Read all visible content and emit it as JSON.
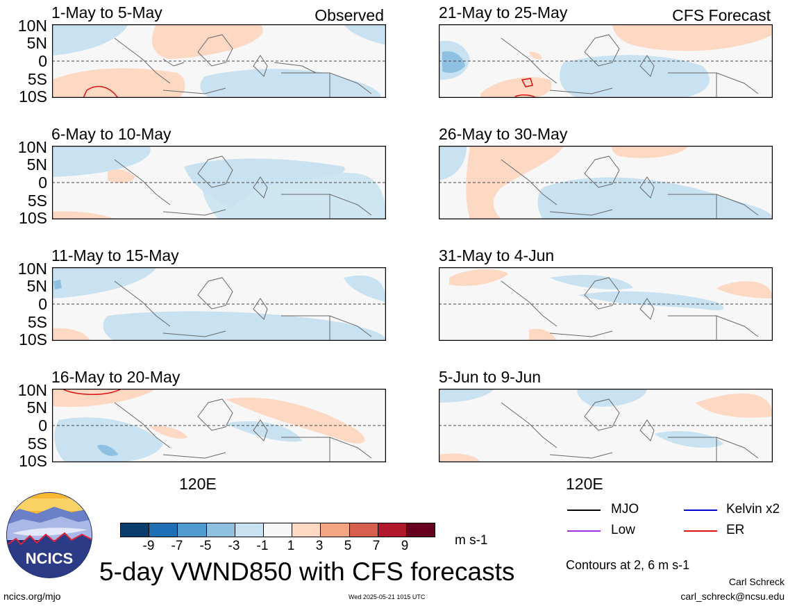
{
  "panels": [
    {
      "label": "1-May to 5-May",
      "tag": "Observed"
    },
    {
      "label": "6-May to 10-May",
      "tag": ""
    },
    {
      "label": "11-May to 15-May",
      "tag": ""
    },
    {
      "label": "16-May to 20-May",
      "tag": ""
    },
    {
      "label": "21-May to 25-May",
      "tag": "CFS Forecast"
    },
    {
      "label": "26-May to 30-May",
      "tag": ""
    },
    {
      "label": "31-May to 4-Jun",
      "tag": ""
    },
    {
      "label": "5-Jun to 9-Jun",
      "tag": ""
    }
  ],
  "lat_labels": [
    "10N",
    "5N",
    "0",
    "5S",
    "10S"
  ],
  "lon_label": "120E",
  "colorbar": {
    "colors": [
      "#0a3d6b",
      "#1f6fb4",
      "#4f9bd0",
      "#8ec1e1",
      "#c9e2f1",
      "#f7f7f7",
      "#fdd8c3",
      "#f4a582",
      "#d6604d",
      "#b2182b",
      "#67001f"
    ],
    "ticks": [
      "-9",
      "-7",
      "-5",
      "-3",
      "-1",
      "1",
      "3",
      "5",
      "7",
      "9"
    ],
    "units": "m s-1"
  },
  "legend": {
    "items": [
      {
        "label": "MJO",
        "color": "#000000"
      },
      {
        "label": "Kelvin x2",
        "color": "#0000cc"
      },
      {
        "label": "Low",
        "color": "#9b30e0"
      },
      {
        "label": "ER",
        "color": "#e01010"
      }
    ],
    "contours_note": "Contours at 2, 6 m s-1"
  },
  "title": "5-day VWND850 with CFS forecasts",
  "logo_text": "NCICS",
  "footer": {
    "left": "ncics.org/mjo",
    "center": "Wed 2025-05-21 1015 UTC",
    "author": "Carl Schreck",
    "email": "carl_schreck@ncsu.edu"
  }
}
